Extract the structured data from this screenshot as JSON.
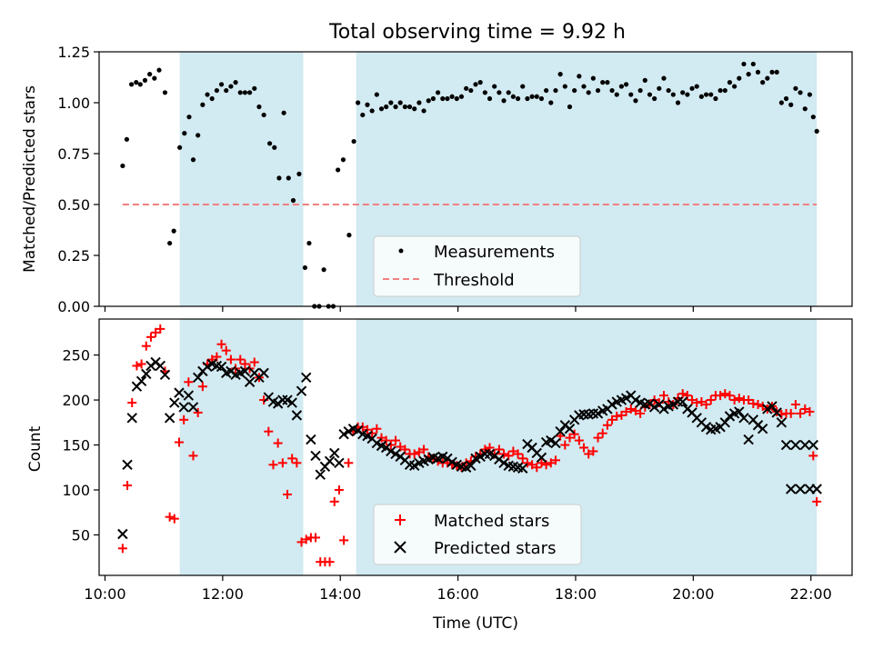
{
  "title": "Total observing time = 9.92 h",
  "top": {
    "ylabel": "Matched/Predicted stars",
    "ylim": [
      0,
      1.25
    ],
    "yticks": [
      0,
      0.25,
      0.5,
      0.75,
      1.0,
      1.25
    ],
    "ytick_labels": [
      "0.00",
      "0.25",
      "0.50",
      "0.75",
      "1.00",
      "1.25"
    ],
    "legend": [
      "Measurements",
      "Threshold"
    ]
  },
  "bottom": {
    "ylabel": "Count",
    "xlabel": "Time (UTC)",
    "ylim": [
      5,
      290
    ],
    "yticks": [
      50,
      100,
      150,
      200,
      250
    ],
    "ytick_labels": [
      "50",
      "100",
      "150",
      "200",
      "250"
    ],
    "legend": [
      "Matched stars",
      "Predicted stars"
    ]
  },
  "xaxis": {
    "xlim": [
      9.9,
      22.7
    ],
    "ticks": [
      10,
      12,
      14,
      16,
      18,
      20,
      22
    ],
    "tick_labels": [
      "10:00",
      "12:00",
      "14:00",
      "16:00",
      "18:00",
      "20:00",
      "22:00"
    ]
  },
  "colors": {
    "shade": "#add8e6",
    "threshold": "#f08080",
    "matched": "#ff0000",
    "predicted": "#000000",
    "measurement": "#000000"
  },
  "chart_data": [
    {
      "type": "scatter",
      "title": "Total observing time = 9.92 h",
      "ylabel": "Matched/Predicted stars",
      "ylim": [
        0,
        1.25
      ],
      "shaded_intervals": [
        [
          11.27,
          13.37
        ],
        [
          14.27,
          22.1
        ]
      ],
      "threshold": {
        "name": "Threshold",
        "y": 0.5,
        "x": [
          10.3,
          22.1
        ],
        "style": "dashed"
      },
      "series": [
        {
          "name": "Measurements",
          "points": [
            [
              10.3,
              0.69
            ],
            [
              10.37,
              0.82
            ],
            [
              10.45,
              1.09
            ],
            [
              10.53,
              1.1
            ],
            [
              10.6,
              1.09
            ],
            [
              10.68,
              1.11
            ],
            [
              10.76,
              1.14
            ],
            [
              10.84,
              1.12
            ],
            [
              10.92,
              1.16
            ],
            [
              11.02,
              1.05
            ],
            [
              11.1,
              0.31
            ],
            [
              11.17,
              0.37
            ],
            [
              11.27,
              0.78
            ],
            [
              11.35,
              0.85
            ],
            [
              11.43,
              0.93
            ],
            [
              11.5,
              0.72
            ],
            [
              11.58,
              0.84
            ],
            [
              11.66,
              0.99
            ],
            [
              11.74,
              1.04
            ],
            [
              11.82,
              1.02
            ],
            [
              11.9,
              1.06
            ],
            [
              11.98,
              1.09
            ],
            [
              12.06,
              1.06
            ],
            [
              12.14,
              1.08
            ],
            [
              12.22,
              1.1
            ],
            [
              12.3,
              1.05
            ],
            [
              12.38,
              1.05
            ],
            [
              12.46,
              1.05
            ],
            [
              12.54,
              1.07
            ],
            [
              12.62,
              0.98
            ],
            [
              12.7,
              0.94
            ],
            [
              12.8,
              0.8
            ],
            [
              12.88,
              0.78
            ],
            [
              12.96,
              0.63
            ],
            [
              13.04,
              0.95
            ],
            [
              13.12,
              0.63
            ],
            [
              13.2,
              0.52
            ],
            [
              13.3,
              0.65
            ],
            [
              13.4,
              0.19
            ],
            [
              13.47,
              0.31
            ],
            [
              13.56,
              0.0
            ],
            [
              13.64,
              0.0
            ],
            [
              13.72,
              0.18
            ],
            [
              13.8,
              0.0
            ],
            [
              13.88,
              0.0
            ],
            [
              13.96,
              0.67
            ],
            [
              14.05,
              0.72
            ],
            [
              14.15,
              0.35
            ],
            [
              14.23,
              0.81
            ],
            [
              14.3,
              1.0
            ],
            [
              14.38,
              0.94
            ],
            [
              14.46,
              0.99
            ],
            [
              14.54,
              0.96
            ],
            [
              14.62,
              1.04
            ],
            [
              14.7,
              0.97
            ],
            [
              14.78,
              0.98
            ],
            [
              14.86,
              1.0
            ],
            [
              14.94,
              0.98
            ],
            [
              15.02,
              1.0
            ],
            [
              15.1,
              0.98
            ],
            [
              15.18,
              0.98
            ],
            [
              15.26,
              0.97
            ],
            [
              15.34,
              1.0
            ],
            [
              15.42,
              0.96
            ],
            [
              15.5,
              1.01
            ],
            [
              15.58,
              1.02
            ],
            [
              15.66,
              1.05
            ],
            [
              15.74,
              1.02
            ],
            [
              15.82,
              1.02
            ],
            [
              15.9,
              1.03
            ],
            [
              15.98,
              1.02
            ],
            [
              16.06,
              1.03
            ],
            [
              16.14,
              1.07
            ],
            [
              16.22,
              1.06
            ],
            [
              16.3,
              1.09
            ],
            [
              16.38,
              1.1
            ],
            [
              16.46,
              1.05
            ],
            [
              16.54,
              1.02
            ],
            [
              16.62,
              1.08
            ],
            [
              16.7,
              1.05
            ],
            [
              16.78,
              1.01
            ],
            [
              16.86,
              1.05
            ],
            [
              16.94,
              1.03
            ],
            [
              17.02,
              1.02
            ],
            [
              17.1,
              1.08
            ],
            [
              17.18,
              1.02
            ],
            [
              17.26,
              1.03
            ],
            [
              17.34,
              1.03
            ],
            [
              17.42,
              1.02
            ],
            [
              17.5,
              1.06
            ],
            [
              17.58,
              1.0
            ],
            [
              17.66,
              1.06
            ],
            [
              17.74,
              1.14
            ],
            [
              17.82,
              1.08
            ],
            [
              17.9,
              0.98
            ],
            [
              17.98,
              1.06
            ],
            [
              18.06,
              1.13
            ],
            [
              18.14,
              1.08
            ],
            [
              18.22,
              1.05
            ],
            [
              18.3,
              1.12
            ],
            [
              18.38,
              1.06
            ],
            [
              18.46,
              1.1
            ],
            [
              18.54,
              1.1
            ],
            [
              18.62,
              1.06
            ],
            [
              18.7,
              1.04
            ],
            [
              18.78,
              1.08
            ],
            [
              18.86,
              1.09
            ],
            [
              18.94,
              1.04
            ],
            [
              19.02,
              1.01
            ],
            [
              19.1,
              1.06
            ],
            [
              19.18,
              1.11
            ],
            [
              19.26,
              1.04
            ],
            [
              19.34,
              1.02
            ],
            [
              19.42,
              1.07
            ],
            [
              19.5,
              1.12
            ],
            [
              19.58,
              1.06
            ],
            [
              19.66,
              1.04
            ],
            [
              19.74,
              1.0
            ],
            [
              19.82,
              1.05
            ],
            [
              19.9,
              1.04
            ],
            [
              19.98,
              1.07
            ],
            [
              20.06,
              1.08
            ],
            [
              20.14,
              1.03
            ],
            [
              20.22,
              1.04
            ],
            [
              20.3,
              1.04
            ],
            [
              20.38,
              1.02
            ],
            [
              20.46,
              1.06
            ],
            [
              20.54,
              1.06
            ],
            [
              20.62,
              1.1
            ],
            [
              20.7,
              1.08
            ],
            [
              20.78,
              1.12
            ],
            [
              20.86,
              1.19
            ],
            [
              20.94,
              1.14
            ],
            [
              21.02,
              1.19
            ],
            [
              21.1,
              1.15
            ],
            [
              21.18,
              1.1
            ],
            [
              21.26,
              1.12
            ],
            [
              21.34,
              1.15
            ],
            [
              21.42,
              1.15
            ],
            [
              21.5,
              1.0
            ],
            [
              21.58,
              1.02
            ],
            [
              21.66,
              0.99
            ],
            [
              21.74,
              1.07
            ],
            [
              21.82,
              1.05
            ],
            [
              21.9,
              0.97
            ],
            [
              21.98,
              1.04
            ],
            [
              22.04,
              0.93
            ],
            [
              22.1,
              0.86
            ]
          ]
        }
      ]
    },
    {
      "type": "scatter",
      "xlabel": "Time (UTC)",
      "ylabel": "Count",
      "ylim": [
        5,
        290
      ],
      "shaded_intervals": [
        [
          11.27,
          13.37
        ],
        [
          14.27,
          22.1
        ]
      ],
      "x": [
        10.3,
        10.38,
        10.46,
        10.54,
        10.62,
        10.7,
        10.78,
        10.86,
        10.94,
        11.02,
        11.1,
        11.18,
        11.26,
        11.34,
        11.42,
        11.5,
        11.58,
        11.66,
        11.74,
        11.82,
        11.9,
        11.98,
        12.06,
        12.14,
        12.22,
        12.3,
        12.38,
        12.46,
        12.54,
        12.62,
        12.7,
        12.78,
        12.86,
        12.94,
        13.02,
        13.1,
        13.18,
        13.26,
        13.34,
        13.42,
        13.5,
        13.58,
        13.66,
        13.74,
        13.82,
        13.9,
        13.98,
        14.06,
        14.14,
        14.22,
        14.3,
        14.38,
        14.46,
        14.54,
        14.62,
        14.7,
        14.78,
        14.86,
        14.94,
        15.02,
        15.1,
        15.18,
        15.26,
        15.34,
        15.42,
        15.5,
        15.58,
        15.66,
        15.74,
        15.82,
        15.9,
        15.98,
        16.06,
        16.14,
        16.22,
        16.3,
        16.38,
        16.46,
        16.54,
        16.62,
        16.7,
        16.78,
        16.86,
        16.94,
        17.02,
        17.1,
        17.18,
        17.26,
        17.34,
        17.42,
        17.5,
        17.58,
        17.66,
        17.74,
        17.82,
        17.9,
        17.98,
        18.06,
        18.14,
        18.22,
        18.3,
        18.38,
        18.46,
        18.54,
        18.62,
        18.7,
        18.78,
        18.86,
        18.94,
        19.02,
        19.1,
        19.18,
        19.26,
        19.34,
        19.42,
        19.5,
        19.58,
        19.66,
        19.74,
        19.82,
        19.9,
        19.98,
        20.06,
        20.14,
        20.22,
        20.3,
        20.38,
        20.46,
        20.54,
        20.62,
        20.7,
        20.78,
        20.86,
        20.94,
        21.02,
        21.1,
        21.18,
        21.26,
        21.34,
        21.42,
        21.5,
        21.58,
        21.66,
        21.74,
        21.82,
        21.9,
        21.98,
        22.04,
        22.1
      ],
      "series": [
        {
          "name": "Matched stars",
          "marker": "+",
          "values": [
            35,
            105,
            197,
            238,
            240,
            260,
            270,
            275,
            279,
            232,
            70,
            68,
            153,
            178,
            220,
            138,
            186,
            215,
            240,
            245,
            248,
            262,
            255,
            245,
            235,
            245,
            240,
            235,
            242,
            225,
            200,
            165,
            128,
            152,
            130,
            95,
            135,
            130,
            42,
            45,
            47,
            47,
            20,
            20,
            20,
            87,
            100,
            44,
            130,
            165,
            170,
            170,
            167,
            163,
            168,
            158,
            155,
            150,
            155,
            148,
            145,
            140,
            140,
            142,
            145,
            137,
            135,
            132,
            130,
            130,
            128,
            127,
            125,
            130,
            132,
            137,
            140,
            145,
            147,
            140,
            145,
            140,
            138,
            143,
            140,
            135,
            130,
            128,
            125,
            130,
            128,
            130,
            133,
            160,
            150,
            158,
            162,
            155,
            147,
            140,
            143,
            158,
            163,
            172,
            178,
            182,
            183,
            187,
            190,
            188,
            185,
            192,
            195,
            200,
            197,
            205,
            198,
            195,
            202,
            207,
            205,
            200,
            197,
            198,
            195,
            200,
            205,
            205,
            207,
            205,
            200,
            202,
            200,
            200,
            196,
            195,
            193,
            190,
            193,
            187,
            184,
            185,
            185,
            195,
            185,
            190,
            187,
            138,
            87
          ]
        },
        {
          "name": "Predicted stars",
          "marker": "x",
          "values": [
            51,
            128,
            180,
            215,
            221,
            229,
            238,
            242,
            238,
            228,
            180,
            197,
            208,
            192,
            205,
            192,
            225,
            232,
            237,
            240,
            238,
            237,
            230,
            232,
            228,
            230,
            232,
            220,
            230,
            225,
            230,
            203,
            198,
            196,
            200,
            200,
            197,
            183,
            210,
            225,
            156,
            138,
            117,
            126,
            132,
            141,
            130,
            162,
            165,
            168,
            166,
            162,
            160,
            157,
            152,
            149,
            147,
            143,
            140,
            137,
            133,
            128,
            127,
            130,
            132,
            134,
            136,
            135,
            137,
            135,
            131,
            128,
            126,
            125,
            127,
            135,
            137,
            140,
            140,
            138,
            134,
            130,
            127,
            126,
            125,
            124,
            151,
            147,
            141,
            136,
            153,
            155,
            152,
            165,
            172,
            168,
            178,
            183,
            184,
            184,
            185,
            185,
            188,
            190,
            195,
            198,
            200,
            202,
            205,
            200,
            197,
            195,
            196,
            192,
            195,
            190,
            193,
            195,
            198,
            198,
            190,
            186,
            180,
            175,
            170,
            167,
            168,
            170,
            175,
            182,
            185,
            187,
            180,
            156,
            178,
            172,
            168,
            190,
            193,
            186,
            175,
            150,
            101,
            150,
            101,
            150,
            101,
            150,
            101
          ]
        }
      ]
    }
  ]
}
